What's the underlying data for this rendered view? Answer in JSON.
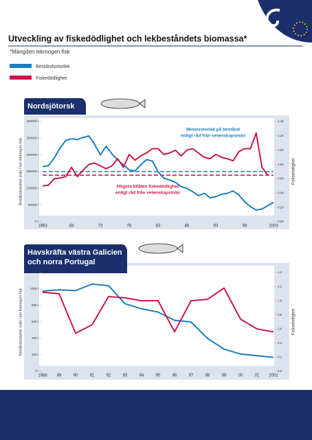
{
  "title": "Utveckling av fiskedödlighet och lekbeståndets biomassa*",
  "subtitle": "*Mängden lekmogen fisk",
  "chart_data": [
    {
      "type": "line",
      "title": "Nordsjötorsk",
      "y_label": "Beståndsstorlek mätt i ton lekmogen fisk",
      "y2_label": "Fiskedödlighet",
      "x": [
        1963,
        1964,
        1965,
        1966,
        1967,
        1968,
        1969,
        1970,
        1971,
        1972,
        1973,
        1974,
        1975,
        1976,
        1977,
        1978,
        1979,
        1980,
        1981,
        1982,
        1983,
        1984,
        1985,
        1986,
        1987,
        1988,
        1989,
        1990,
        1991,
        1992,
        1993,
        1994,
        1995,
        1996,
        1997,
        1998,
        1999,
        2000,
        2001,
        2002,
        2003
      ],
      "xlim": [
        1963,
        2003
      ],
      "xticks": [
        1963,
        {
          "value": 1968,
          "label": "68"
        },
        {
          "value": 1973,
          "label": "73"
        },
        {
          "value": 1978,
          "label": "78"
        },
        {
          "value": 1983,
          "label": "83"
        },
        {
          "value": 1988,
          "label": "88"
        },
        {
          "value": 1993,
          "label": "93"
        },
        {
          "value": 1998,
          "label": "98"
        },
        2003
      ],
      "ylim": [
        0,
        300000
      ],
      "yticks": [
        {
          "value": 0,
          "label": "0 t"
        },
        {
          "value": 50000,
          "label": "50000 t"
        },
        {
          "value": 100000,
          "label": "100000 t"
        },
        {
          "value": 150000,
          "label": "150000 t"
        },
        {
          "value": 200000,
          "label": "200000 t"
        },
        {
          "value": 250000,
          "label": "250000 t"
        },
        {
          "value": 300000,
          "label": "300000 t"
        }
      ],
      "y2lim": [
        0,
        1.4
      ],
      "y2ticks": [
        {
          "value": 0,
          "label": "0,00"
        },
        {
          "value": 0.2,
          "label": "0,20"
        },
        {
          "value": 0.4,
          "label": "0,40"
        },
        {
          "value": 0.6,
          "label": "0,60"
        },
        {
          "value": 0.8,
          "label": "0,80"
        },
        {
          "value": 1.0,
          "label": "1,00"
        },
        {
          "value": 1.2,
          "label": "1,20"
        },
        {
          "value": 1.4,
          "label": "1,40"
        }
      ],
      "series": [
        {
          "name": "Beståndsstorlek",
          "color": "#1a7dc0",
          "values": [
            165000,
            168000,
            190000,
            220000,
            243000,
            248000,
            246000,
            252000,
            257000,
            232000,
            200000,
            226000,
            203000,
            185000,
            170000,
            155000,
            152000,
            170000,
            186000,
            182000,
            150000,
            130000,
            125000,
            118000,
            105000,
            100000,
            90000,
            78000,
            85000,
            72000,
            75000,
            82000,
            85000,
            92000,
            80000,
            60000,
            45000,
            35000,
            38000,
            48000,
            58000
          ]
        },
        {
          "name": "Fiskedödlighet",
          "color": "#c8184a",
          "axis": "y2",
          "values": [
            0.5,
            0.51,
            0.6,
            0.61,
            0.63,
            0.76,
            0.63,
            0.72,
            0.8,
            0.82,
            0.78,
            0.74,
            0.78,
            0.88,
            0.76,
            0.94,
            0.86,
            0.92,
            0.96,
            1.02,
            1.02,
            0.94,
            0.96,
            1.0,
            0.92,
            1.0,
            1.02,
            0.96,
            0.9,
            0.88,
            0.94,
            0.9,
            0.88,
            0.85,
            0.98,
            1.02,
            1.02,
            1.24,
            0.76,
            0.65,
            null
          ]
        }
      ],
      "reference_lines": [
        {
          "value": 150000,
          "axis": "y",
          "color": "#1a7dc0",
          "label": [
            "Minimistorlek på bestånd",
            "enligt råd från vetenskapsmän"
          ]
        },
        {
          "value": 0.65,
          "axis": "y2",
          "color": "#c8184a",
          "label": [
            "Högsta tillåten fiskedödlighet",
            "enligt råd från vetenskapsmän"
          ]
        }
      ]
    },
    {
      "type": "line",
      "title": [
        "Havskräfta västra Galicien",
        "och norra Portugal"
      ],
      "y_label": "Beståndsstorlek mätt i ton lekmogen fisk",
      "y2_label": "Fiskedödlighet",
      "x": [
        1988,
        1989,
        1990,
        1991,
        1992,
        1993,
        1994,
        1995,
        1996,
        1997,
        1998,
        1999,
        2000,
        2001,
        2002
      ],
      "xlim": [
        1988,
        2002
      ],
      "xticks": [
        1988,
        {
          "value": 1989,
          "label": "89"
        },
        {
          "value": 1990,
          "label": "90"
        },
        {
          "value": 1991,
          "label": "91"
        },
        {
          "value": 1992,
          "label": "92"
        },
        {
          "value": 1993,
          "label": "93"
        },
        {
          "value": 1994,
          "label": "94"
        },
        {
          "value": 1995,
          "label": "95"
        },
        {
          "value": 1996,
          "label": "96"
        },
        {
          "value": 1997,
          "label": "97"
        },
        {
          "value": 1998,
          "label": "98"
        },
        {
          "value": 1999,
          "label": "99"
        },
        {
          "value": 2000,
          "label": "00"
        },
        {
          "value": 2001,
          "label": "01"
        },
        2002
      ],
      "ylim": [
        0,
        1200
      ],
      "yticks": [
        {
          "value": 0,
          "label": "0 t"
        },
        {
          "value": 200,
          "label": "200 t"
        },
        {
          "value": 400,
          "label": "400 t"
        },
        {
          "value": 600,
          "label": "600 t"
        },
        {
          "value": 800,
          "label": "800 t"
        },
        {
          "value": 1000,
          "label": "1000 t"
        },
        {
          "value": 1200,
          "label": "1200 t"
        }
      ],
      "y2lim": [
        0,
        1.4
      ],
      "y2ticks": [
        {
          "value": 0,
          "label": "0,0"
        },
        {
          "value": 0.2,
          "label": "0,2"
        },
        {
          "value": 0.4,
          "label": "0,4"
        },
        {
          "value": 0.6,
          "label": "0,6"
        },
        {
          "value": 0.8,
          "label": "0,8"
        },
        {
          "value": 1.0,
          "label": "1,0"
        },
        {
          "value": 1.2,
          "label": "1,2"
        },
        {
          "value": 1.4,
          "label": "1,4"
        }
      ],
      "series": [
        {
          "name": "Beståndsstorlek",
          "color": "#1a7dc0",
          "values": [
            975,
            990,
            980,
            1060,
            1040,
            820,
            760,
            720,
            620,
            600,
            400,
            270,
            210,
            190,
            170
          ]
        },
        {
          "name": "Fiskedödlighet",
          "color": "#c8184a",
          "axis": "y2",
          "values": [
            1.12,
            1.1,
            0.54,
            0.66,
            1.06,
            1.04,
            1.0,
            1.0,
            0.56,
            1.0,
            1.02,
            1.18,
            0.74,
            0.6,
            0.56
          ]
        }
      ]
    }
  ]
}
